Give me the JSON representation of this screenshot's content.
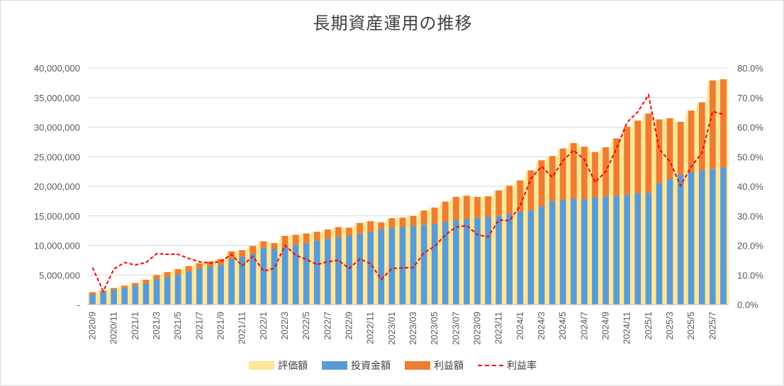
{
  "chart_data": {
    "type": "bar",
    "title": "長期資産運用の推移",
    "categories": [
      "2020/9",
      "2020/10",
      "2020/11",
      "2020/12",
      "2021/1",
      "2021/2",
      "2021/3",
      "2021/4",
      "2021/5",
      "2021/6",
      "2021/7",
      "2021/8",
      "2021/9",
      "2021/10",
      "2021/11",
      "2021/12",
      "2022/1",
      "2022/2",
      "2022/3",
      "2022/4",
      "2022/5",
      "2022/6",
      "2022/7",
      "2022/8",
      "2022/9",
      "2022/10",
      "2022/11",
      "2022/12",
      "2023/01",
      "2023/02",
      "2023/03",
      "2023/04",
      "2023/05",
      "2023/06",
      "2023/07",
      "2023/08",
      "2023/09",
      "2023/10",
      "2023/11",
      "2023/12",
      "2024/1",
      "2024/2",
      "2024/3",
      "2024/4",
      "2024/5",
      "2024/6",
      "2024/7",
      "2024/8",
      "2024/9",
      "2024/10",
      "2024/11",
      "2024/12",
      "2025/1",
      "2025/2",
      "2025/3",
      "2025/4",
      "2025/5",
      "2025/6",
      "2025/7",
      "2025/8"
    ],
    "x_tick_labels": [
      "2020/9",
      "2020/11",
      "2021/1",
      "2021/3",
      "2021/5",
      "2021/7",
      "2021/9",
      "2021/11",
      "2022/1",
      "2022/3",
      "2022/5",
      "2022/7",
      "2022/9",
      "2022/11",
      "2023/01",
      "2023/03",
      "2023/05",
      "2023/07",
      "2023/09",
      "2023/11",
      "2024/1",
      "2024/3",
      "2024/5",
      "2024/7",
      "2024/9",
      "2024/11",
      "2025/1",
      "2025/3",
      "2025/5",
      "2025/7"
    ],
    "y_ticks_left": [
      "-",
      "5,000,000",
      "10,000,000",
      "15,000,000",
      "20,000,000",
      "25,000,000",
      "30,000,000",
      "35,000,000",
      "40,000,000"
    ],
    "y_ticks_right": [
      "0.0%",
      "10.0%",
      "20.0%",
      "30.0%",
      "40.0%",
      "50.0%",
      "60.0%",
      "70.0%",
      "80.0%"
    ],
    "ylim": [
      0,
      40000000
    ],
    "ylim_right": [
      0,
      80
    ],
    "grid": true,
    "legend_position": "bottom",
    "series": [
      {
        "name": "評価額",
        "kind": "area",
        "color": "#ffe699",
        "values": [
          2100000,
          2400000,
          2800000,
          3200000,
          3650000,
          4200000,
          5000000,
          5500000,
          6000000,
          6500000,
          7000000,
          7300000,
          7700000,
          9000000,
          9200000,
          9900000,
          10700000,
          10400000,
          11600000,
          11800000,
          12000000,
          12300000,
          12700000,
          13100000,
          13000000,
          13800000,
          14100000,
          13900000,
          14600000,
          14700000,
          15000000,
          15900000,
          16400000,
          17400000,
          18200000,
          18400000,
          18200000,
          18300000,
          19300000,
          20100000,
          21000000,
          22700000,
          24400000,
          25100000,
          26400000,
          27300000,
          26700000,
          25800000,
          26600000,
          28100000,
          30100000,
          31100000,
          32300000,
          31300000,
          31500000,
          30900000,
          32800000,
          34200000,
          37900000,
          38100000
        ]
      },
      {
        "name": "投資金額",
        "kind": "bar",
        "color": "#5b9bd5",
        "values": [
          1800000,
          2200000,
          2500000,
          2800000,
          3200000,
          3600000,
          4300000,
          4700000,
          5100000,
          5600000,
          6100000,
          6400000,
          6700000,
          7700000,
          8100000,
          8500000,
          9600000,
          9400000,
          9700000,
          10100000,
          10400000,
          10800000,
          11100000,
          11400000,
          11600000,
          12000000,
          12300000,
          12700000,
          13000000,
          13100000,
          13300000,
          13500000,
          13700000,
          14000000,
          14300000,
          14500000,
          14700000,
          14900000,
          15000000,
          15300000,
          15700000,
          15900000,
          16600000,
          17500000,
          17700000,
          17900000,
          17900000,
          18100000,
          18300000,
          18400000,
          18600000,
          18800000,
          18900000,
          20500000,
          21200000,
          22000000,
          22400000,
          22700000,
          22900000,
          23200000
        ]
      },
      {
        "name": "利益額",
        "kind": "stacked-bar",
        "color": "#ed7d31",
        "values": [
          300000,
          200000,
          300000,
          400000,
          450000,
          600000,
          700000,
          800000,
          900000,
          900000,
          900000,
          900000,
          1000000,
          1300000,
          1100000,
          1400000,
          1100000,
          1000000,
          1900000,
          1700000,
          1600000,
          1500000,
          1600000,
          1700000,
          1400000,
          1800000,
          1800000,
          1200000,
          1600000,
          1600000,
          1700000,
          2400000,
          2700000,
          3400000,
          3900000,
          3900000,
          3500000,
          3400000,
          4300000,
          4800000,
          5300000,
          6800000,
          7800000,
          7600000,
          8700000,
          9400000,
          8800000,
          7700000,
          8300000,
          9700000,
          11500000,
          12300000,
          13400000,
          10800000,
          10300000,
          8900000,
          10400000,
          11500000,
          15000000,
          14900000
        ]
      },
      {
        "name": "利益率",
        "kind": "line",
        "color": "#ff0000",
        "values": [
          12.5,
          4.5,
          12.0,
          14.2,
          13.4,
          14.2,
          17.2,
          17.0,
          17.0,
          15.6,
          14.5,
          14.0,
          14.6,
          16.9,
          13.1,
          16.3,
          11.3,
          12.3,
          20.0,
          16.7,
          15.3,
          13.5,
          14.5,
          15.0,
          12.2,
          15.4,
          13.9,
          8.5,
          12.2,
          12.4,
          12.5,
          17.5,
          19.7,
          23.6,
          26.2,
          26.7,
          23.6,
          22.9,
          28.6,
          28.4,
          33.4,
          42.6,
          46.7,
          43.1,
          48.7,
          52.2,
          49.0,
          41.3,
          45.0,
          52.7,
          61.6,
          65.2,
          70.9,
          52.5,
          48.4,
          40.2,
          46.6,
          51.3,
          65.3,
          64.3
        ]
      }
    ]
  }
}
